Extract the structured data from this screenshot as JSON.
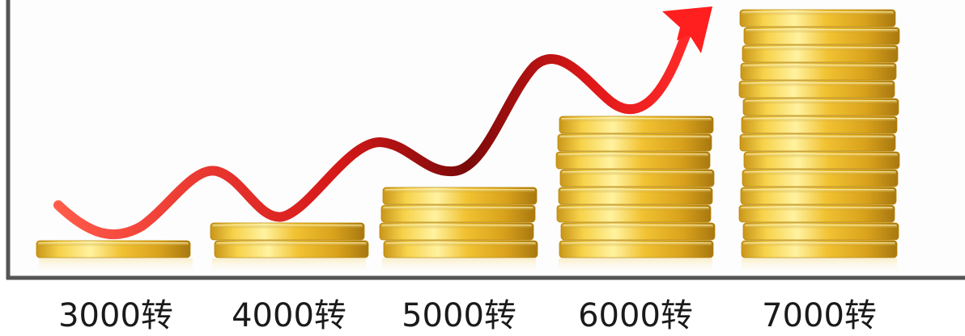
{
  "chart_data": {
    "type": "bar",
    "title": "",
    "xlabel": "",
    "ylabel": "",
    "categories": [
      "3000转",
      "4000转",
      "5000转",
      "6000转",
      "7000转"
    ],
    "values": [
      1,
      2,
      4,
      8,
      14
    ],
    "trend_arrow": true,
    "colors": {
      "coin_light": "#fff2a0",
      "coin_mid": "#f1c232",
      "coin_dark": "#b8860b",
      "arrow_light": "#ff2a2a",
      "arrow_dark": "#7a0a0a",
      "axis": "#555555"
    }
  }
}
